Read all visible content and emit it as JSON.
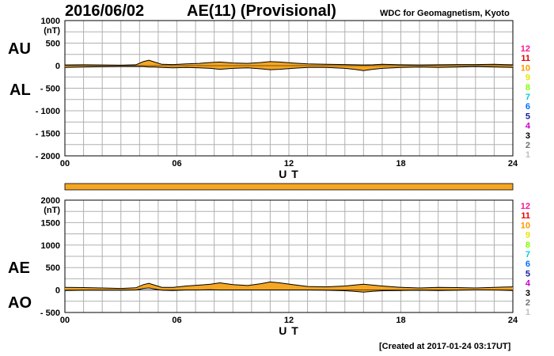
{
  "header": {
    "date": "2016/06/02",
    "title": "AE(11) (Provisional)",
    "credit": "WDC for Geomagnetism, Kyoto"
  },
  "footer": {
    "created": "[Created at 2017-01-24 03:17UT]"
  },
  "colors": {
    "fill": "#f5a623",
    "grid": "#b0b0b0"
  },
  "station_legend": {
    "labels": [
      "12",
      "11",
      "10",
      "9",
      "8",
      "7",
      "6",
      "5",
      "4",
      "3",
      "2",
      "1"
    ],
    "colors": [
      "#ff1493",
      "#e60000",
      "#ff9900",
      "#e6e600",
      "#80ff00",
      "#00d0d0",
      "#0070ff",
      "#1a1aa0",
      "#cc00cc",
      "#000000",
      "#707070",
      "#c0c0c0"
    ]
  },
  "chart_data": [
    {
      "type": "area",
      "panel": "AU/AL",
      "labels": [
        "AU",
        "AL"
      ],
      "xlabel": "U T",
      "yunit": "(nT)",
      "xlim": [
        0,
        24
      ],
      "ylim": [
        -2000,
        1000
      ],
      "xticks": [
        "00",
        "06",
        "12",
        "18",
        "24"
      ],
      "yticks": [
        {
          "v": 1000,
          "t": "1000"
        },
        {
          "v": 500,
          "t": "500"
        },
        {
          "v": 0,
          "t": "0"
        },
        {
          "v": -500,
          "t": "- 500"
        },
        {
          "v": -1000,
          "t": "- 1000"
        },
        {
          "v": -1500,
          "t": "- 1500"
        },
        {
          "v": -2000,
          "t": "- 2000"
        }
      ],
      "x": [
        0,
        1,
        2,
        3,
        3.8,
        4.2,
        4.5,
        4.8,
        5.2,
        5.8,
        6.5,
        7.2,
        7.8,
        8.3,
        9,
        9.8,
        10.5,
        11,
        11.5,
        12.2,
        13,
        14,
        15,
        15.5,
        16,
        16.5,
        17,
        18,
        19,
        20,
        21,
        22,
        23,
        24
      ],
      "series": [
        {
          "name": "AU",
          "values": [
            15,
            20,
            15,
            10,
            20,
            90,
            120,
            80,
            30,
            25,
            40,
            50,
            70,
            80,
            60,
            50,
            70,
            90,
            80,
            60,
            40,
            30,
            25,
            20,
            15,
            20,
            30,
            20,
            15,
            20,
            25,
            25,
            30,
            20
          ]
        },
        {
          "name": "AL",
          "values": [
            -40,
            -30,
            -25,
            -20,
            -20,
            -20,
            -30,
            -30,
            -40,
            -50,
            -40,
            -50,
            -60,
            -80,
            -60,
            -50,
            -70,
            -90,
            -80,
            -60,
            -40,
            -40,
            -60,
            -80,
            -110,
            -80,
            -60,
            -40,
            -30,
            -40,
            -30,
            -20,
            -30,
            -40
          ]
        }
      ]
    },
    {
      "type": "area",
      "panel": "AE/AO",
      "labels": [
        "AE",
        "AO"
      ],
      "xlabel": "U T",
      "yunit": "(nT)",
      "xlim": [
        0,
        24
      ],
      "ylim": [
        -500,
        2000
      ],
      "xticks": [
        "00",
        "06",
        "12",
        "18",
        "24"
      ],
      "yticks": [
        {
          "v": 2000,
          "t": "2000"
        },
        {
          "v": 1500,
          "t": "1500"
        },
        {
          "v": 1000,
          "t": "1000"
        },
        {
          "v": 500,
          "t": "500"
        },
        {
          "v": 0,
          "t": "0"
        },
        {
          "v": -500,
          "t": "- 500"
        }
      ],
      "x": [
        0,
        1,
        2,
        3,
        3.8,
        4.2,
        4.5,
        4.8,
        5.2,
        5.8,
        6.5,
        7.2,
        7.8,
        8.3,
        9,
        9.8,
        10.5,
        11,
        11.5,
        12.2,
        13,
        14,
        15,
        15.5,
        16,
        16.5,
        17,
        18,
        19,
        20,
        21,
        22,
        23,
        24
      ],
      "series": [
        {
          "name": "AE",
          "values": [
            60,
            55,
            45,
            35,
            50,
            120,
            150,
            110,
            60,
            60,
            90,
            110,
            130,
            160,
            120,
            100,
            140,
            180,
            160,
            120,
            80,
            70,
            90,
            110,
            130,
            110,
            90,
            60,
            45,
            60,
            55,
            45,
            60,
            70
          ]
        },
        {
          "name": "AO",
          "values": [
            -10,
            -5,
            -5,
            -5,
            0,
            35,
            45,
            25,
            -5,
            -10,
            0,
            0,
            5,
            0,
            0,
            0,
            0,
            0,
            0,
            0,
            0,
            -5,
            -15,
            -30,
            -45,
            -30,
            -15,
            -10,
            -5,
            -10,
            -5,
            2,
            0,
            -10
          ]
        }
      ]
    }
  ]
}
